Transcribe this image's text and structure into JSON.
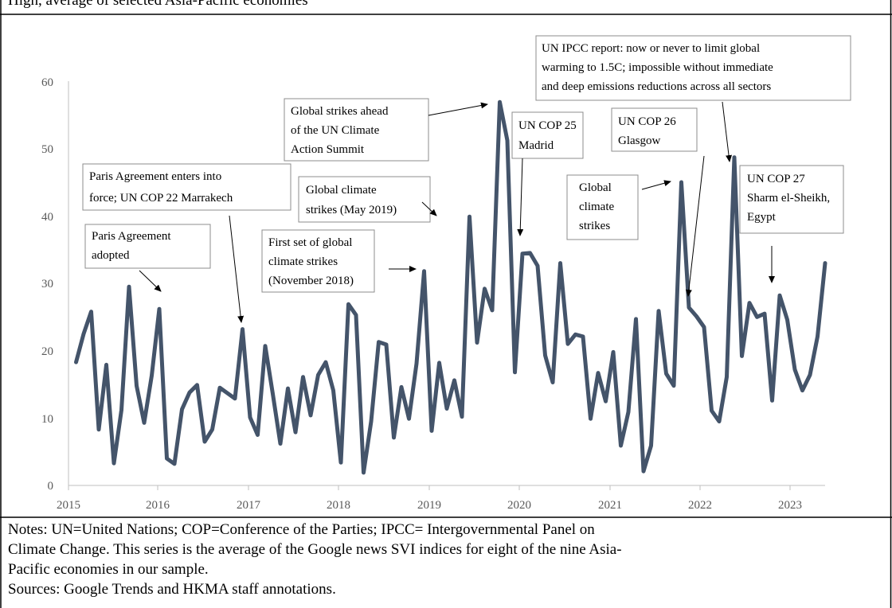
{
  "header_partial": "High, average of selected Asia-Pacific economies",
  "chart_data": {
    "type": "line",
    "title": "",
    "xlabel": "",
    "ylabel": "",
    "ylim": [
      0,
      60
    ],
    "yticks": [
      "0",
      "10",
      "20",
      "30",
      "40",
      "50",
      "60"
    ],
    "xlim": [
      "2015-01",
      "2023-05"
    ],
    "xticks": [
      "2015",
      "2016",
      "2017",
      "2018",
      "2019",
      "2020",
      "2021",
      "2022",
      "2023"
    ],
    "grid": false,
    "color": "#44546a",
    "series": [
      {
        "name": "",
        "x": [
          "2015-02",
          "2015-03",
          "2015-04",
          "2015-05",
          "2015-06",
          "2015-07",
          "2015-08",
          "2015-09",
          "2015-10",
          "2015-11",
          "2015-12",
          "2016-01",
          "2016-02",
          "2016-03",
          "2016-04",
          "2016-05",
          "2016-06",
          "2016-07",
          "2016-08",
          "2016-09",
          "2016-10",
          "2016-11",
          "2016-12",
          "2017-01",
          "2017-02",
          "2017-03",
          "2017-04",
          "2017-05",
          "2017-06",
          "2017-07",
          "2017-08",
          "2017-09",
          "2017-10",
          "2017-11",
          "2017-12",
          "2018-01",
          "2018-02",
          "2018-03",
          "2018-04",
          "2018-05",
          "2018-06",
          "2018-07",
          "2018-08",
          "2018-09",
          "2018-10",
          "2018-11",
          "2018-12",
          "2019-01",
          "2019-02",
          "2019-03",
          "2019-04",
          "2019-05",
          "2019-06",
          "2019-07",
          "2019-08",
          "2019-09",
          "2019-10",
          "2019-11",
          "2019-12",
          "2020-01",
          "2020-02",
          "2020-03",
          "2020-04",
          "2020-05",
          "2020-06",
          "2020-07",
          "2020-08",
          "2020-09",
          "2020-10",
          "2020-11",
          "2020-12",
          "2021-01",
          "2021-02",
          "2021-03",
          "2021-04",
          "2021-05",
          "2021-06",
          "2021-07",
          "2021-08",
          "2021-09",
          "2021-10",
          "2021-11",
          "2021-12",
          "2022-01",
          "2022-02",
          "2022-03",
          "2022-04",
          "2022-05",
          "2022-06",
          "2022-07",
          "2022-08",
          "2022-09",
          "2022-10",
          "2022-11",
          "2022-12",
          "2023-01",
          "2023-02",
          "2023-03",
          "2023-04",
          "2023-05"
        ],
        "values": [
          18.3,
          22.5,
          25.8,
          8.3,
          17.9,
          3.3,
          11.2,
          29.5,
          14.8,
          9.3,
          16.3,
          26.2,
          4.0,
          3.2,
          11.3,
          13.8,
          14.9,
          6.5,
          8.3,
          14.5,
          13.7,
          12.9,
          23.2,
          10.1,
          7.5,
          20.7,
          13.6,
          6.2,
          14.4,
          7.9,
          16.1,
          10.4,
          16.4,
          18.3,
          14.1,
          3.4,
          26.9,
          25.3,
          1.9,
          9.5,
          21.3,
          20.9,
          7.1,
          14.6,
          9.9,
          18.1,
          31.8,
          8.1,
          18.2,
          11.4,
          15.6,
          10.2,
          39.9,
          21.2,
          29.2,
          26.0,
          56.9,
          51.2,
          16.8,
          34.4,
          34.5,
          32.6,
          19.3,
          15.3,
          33.0,
          21.0,
          22.4,
          22.1,
          9.9,
          16.7,
          12.5,
          19.8,
          5.9,
          10.9,
          24.7,
          2.1,
          5.9,
          25.9,
          16.6,
          14.8,
          45.0,
          26.4,
          25.1,
          23.5,
          11.1,
          9.5,
          16.1,
          48.7,
          19.2,
          27.1,
          25.0,
          25.5,
          12.6,
          28.2,
          24.6,
          17.2,
          14.1,
          16.4,
          22.1,
          33.0
        ]
      }
    ],
    "annotations": [
      {
        "text": [
          "Paris Agreement",
          "adopted"
        ]
      },
      {
        "text": [
          "Paris Agreement enters into",
          "force; UN COP 22 Marrakech"
        ]
      },
      {
        "text": [
          "First set of global",
          "climate strikes",
          "(November 2018)"
        ]
      },
      {
        "text": [
          "Global climate",
          "strikes (May 2019)"
        ]
      },
      {
        "text": [
          "Global strikes ahead",
          "of the UN Climate",
          "Action Summit"
        ]
      },
      {
        "text": [
          "UN COP 25",
          "Madrid"
        ]
      },
      {
        "text": [
          "Global",
          "climate",
          "strikes"
        ]
      },
      {
        "text": [
          "UN COP 26",
          "Glasgow"
        ]
      },
      {
        "text": [
          "UN IPCC report: now or never to limit global",
          "warming to 1.5C; impossible without immediate",
          "and deep emissions reductions across all sectors"
        ]
      },
      {
        "text": [
          "UN COP 27",
          "Sharm el-Sheikh,",
          "Egypt"
        ]
      }
    ]
  },
  "notes": {
    "line1": "Notes: UN=United Nations; COP=Conference of the Parties; IPCC= Intergovernmental Panel on",
    "line2": "Climate Change. This series is the average of the Google news SVI indices for eight of the nine Asia-",
    "line3": "Pacific economies in our sample.",
    "line4": "Sources: Google Trends and HKMA staff annotations."
  }
}
